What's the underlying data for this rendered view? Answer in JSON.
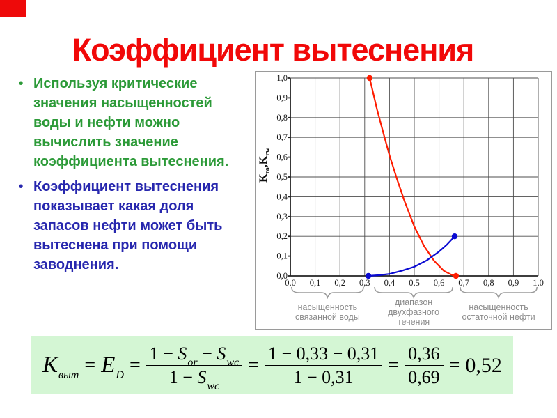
{
  "slide": {
    "title": "Коэффициент вытеснения",
    "bullet_marker": "•",
    "accent_color": "#ee0a0a",
    "title_color": "#f10808"
  },
  "bullets": [
    {
      "text": "Используя критические\nзначения насыщенностей\nводы и нефти можно\nвычислить значение\nкоэффициента вытеснения.",
      "color": "#2c9a38"
    },
    {
      "text": "Коэффициент вытеснения\nпоказывает какая доля\nзапасов нефти может быть\nвытеснена при помощи\nзаводнения.",
      "color": "#2727ae"
    }
  ],
  "chart_data": {
    "type": "line",
    "title": "",
    "xlabel": "",
    "ylabel": "Kro,Krw",
    "ylabel_parts": {
      "k1": "K",
      "s1": "ro",
      "comma": ",",
      "k2": "K",
      "s2": "rw"
    },
    "xlim": [
      0,
      1
    ],
    "ylim": [
      0,
      1
    ],
    "grid": true,
    "x_ticks": [
      "0,0",
      "0,1",
      "0,2",
      "0,3",
      "0,4",
      "0,5",
      "0,6",
      "0,7",
      "0,8",
      "0,9",
      "1,0"
    ],
    "y_ticks": [
      "0,0",
      "0,1",
      "0,2",
      "0,3",
      "0,4",
      "0,5",
      "0,6",
      "0,7",
      "0,8",
      "0,9",
      "1,0"
    ],
    "series": [
      {
        "name": "Kro",
        "color": "#fe1c00",
        "points": [
          [
            0.32,
            1.0
          ],
          [
            0.35,
            0.84
          ],
          [
            0.38,
            0.7
          ],
          [
            0.4,
            0.61
          ],
          [
            0.43,
            0.49
          ],
          [
            0.46,
            0.38
          ],
          [
            0.5,
            0.25
          ],
          [
            0.54,
            0.15
          ],
          [
            0.58,
            0.076
          ],
          [
            0.62,
            0.025
          ],
          [
            0.65,
            0.006
          ],
          [
            0.668,
            0.0
          ]
        ]
      },
      {
        "name": "Krw",
        "color": "#0a0ad2",
        "points": [
          [
            0.315,
            0.0
          ],
          [
            0.36,
            0.004
          ],
          [
            0.4,
            0.01
          ],
          [
            0.45,
            0.026
          ],
          [
            0.5,
            0.046
          ],
          [
            0.55,
            0.078
          ],
          [
            0.6,
            0.123
          ],
          [
            0.63,
            0.156
          ],
          [
            0.663,
            0.2
          ]
        ]
      }
    ],
    "regions": [
      {
        "label": "насыщенность\nсвязанной воды",
        "from": 0.005,
        "to": 0.295
      },
      {
        "label": "диапазон\nдвухфазного\nтечения",
        "from": 0.34,
        "to": 0.655
      },
      {
        "label": "насыщенность\nостаточной нефти",
        "from": 0.685,
        "to": 0.995
      }
    ]
  },
  "formula": {
    "lhs": "K",
    "lhs_sub": "выт",
    "eq1": "=",
    "e": "E",
    "e_sub": "D",
    "eq2": "=",
    "frac1": {
      "n1": "1 − ",
      "n2": "S",
      "n2s": "or",
      "n3": " − ",
      "n4": "S",
      "n4s": "wc",
      "d1": "1 − ",
      "d2": "S",
      "d2s": "wc"
    },
    "eq3": "=",
    "frac2": {
      "num": "1 − 0,33 − 0,31",
      "den": "1 − 0,31"
    },
    "eq4": "=",
    "frac3": {
      "num": "0,36",
      "den": "0,69"
    },
    "eq5": "=",
    "result": "0,52",
    "background": "#d4f6d4"
  }
}
